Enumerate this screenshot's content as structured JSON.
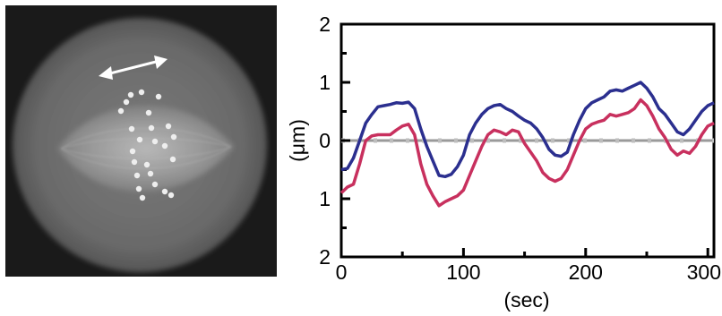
{
  "micrograph": {
    "description_icon": "double-headed-arrow-icon",
    "spots": [
      [
        140,
        100
      ],
      [
        152,
        97
      ],
      [
        129,
        118
      ],
      [
        160,
        120
      ],
      [
        141,
        138
      ],
      [
        163,
        137
      ],
      [
        150,
        150
      ],
      [
        167,
        152
      ],
      [
        142,
        163
      ],
      [
        182,
        135
      ],
      [
        178,
        157
      ],
      [
        187,
        172
      ],
      [
        144,
        175
      ],
      [
        158,
        178
      ],
      [
        147,
        190
      ],
      [
        162,
        188
      ],
      [
        149,
        205
      ],
      [
        167,
        200
      ],
      [
        153,
        215
      ],
      [
        185,
        212
      ],
      [
        178,
        208
      ],
      [
        135,
        108
      ],
      [
        171,
        102
      ],
      [
        188,
        147
      ]
    ]
  },
  "chart_data": {
    "type": "line",
    "title": "",
    "xlabel": "(sec)",
    "ylabel": "(μm)",
    "xlim": [
      0,
      305
    ],
    "ylim": [
      -2,
      2
    ],
    "x_ticks": [
      0,
      100,
      200,
      300
    ],
    "x_tick_labels": [
      "0",
      "100",
      "200",
      "300"
    ],
    "y_ticks": [
      2,
      1,
      0,
      -1,
      -2
    ],
    "y_tick_labels": [
      "2",
      "1",
      "0",
      "1",
      "2"
    ],
    "reference_line": {
      "y": 0,
      "style": "dashed",
      "color": "#999999"
    },
    "series": [
      {
        "color": "#2b2f8f",
        "x": [
          0,
          5,
          10,
          15,
          20,
          25,
          30,
          35,
          40,
          45,
          50,
          55,
          60,
          65,
          70,
          75,
          80,
          85,
          90,
          95,
          100,
          105,
          110,
          115,
          120,
          125,
          130,
          135,
          140,
          145,
          150,
          155,
          160,
          165,
          170,
          175,
          180,
          185,
          190,
          195,
          200,
          205,
          210,
          215,
          220,
          225,
          230,
          235,
          240,
          245,
          250,
          255,
          260,
          265,
          270,
          275,
          280,
          285,
          290,
          295,
          300,
          305
        ],
        "values": [
          -0.5,
          -0.48,
          -0.3,
          0.0,
          0.3,
          0.45,
          0.58,
          0.6,
          0.62,
          0.65,
          0.64,
          0.66,
          0.55,
          0.2,
          -0.1,
          -0.35,
          -0.6,
          -0.62,
          -0.58,
          -0.45,
          -0.25,
          0.1,
          0.3,
          0.45,
          0.55,
          0.6,
          0.62,
          0.55,
          0.5,
          0.42,
          0.35,
          0.3,
          0.2,
          0.05,
          -0.15,
          -0.25,
          -0.27,
          -0.2,
          0.1,
          0.35,
          0.55,
          0.65,
          0.7,
          0.75,
          0.85,
          0.87,
          0.85,
          0.9,
          0.95,
          1.0,
          0.9,
          0.75,
          0.55,
          0.45,
          0.3,
          0.15,
          0.1,
          0.2,
          0.35,
          0.5,
          0.6,
          0.65
        ]
      },
      {
        "color": "#c8305e",
        "x": [
          0,
          5,
          10,
          15,
          20,
          25,
          30,
          35,
          40,
          45,
          50,
          55,
          60,
          65,
          70,
          75,
          80,
          85,
          90,
          95,
          100,
          105,
          110,
          115,
          120,
          125,
          130,
          135,
          140,
          145,
          150,
          155,
          160,
          165,
          170,
          175,
          180,
          185,
          190,
          195,
          200,
          205,
          210,
          215,
          220,
          225,
          230,
          235,
          240,
          245,
          250,
          255,
          260,
          265,
          270,
          275,
          280,
          285,
          290,
          295,
          300,
          305
        ],
        "values": [
          -0.9,
          -0.8,
          -0.75,
          -0.4,
          0.0,
          0.08,
          0.1,
          0.1,
          0.1,
          0.18,
          0.25,
          0.28,
          0.1,
          -0.4,
          -0.75,
          -0.95,
          -1.12,
          -1.05,
          -1.0,
          -0.95,
          -0.85,
          -0.6,
          -0.35,
          -0.1,
          0.1,
          0.18,
          0.15,
          0.1,
          0.18,
          0.15,
          -0.05,
          -0.2,
          -0.35,
          -0.55,
          -0.65,
          -0.7,
          -0.65,
          -0.5,
          -0.25,
          0.0,
          0.2,
          0.28,
          0.32,
          0.35,
          0.45,
          0.42,
          0.45,
          0.48,
          0.55,
          0.7,
          0.6,
          0.42,
          0.2,
          0.05,
          -0.15,
          -0.25,
          -0.18,
          -0.22,
          -0.1,
          0.1,
          0.25,
          0.3
        ]
      }
    ]
  }
}
